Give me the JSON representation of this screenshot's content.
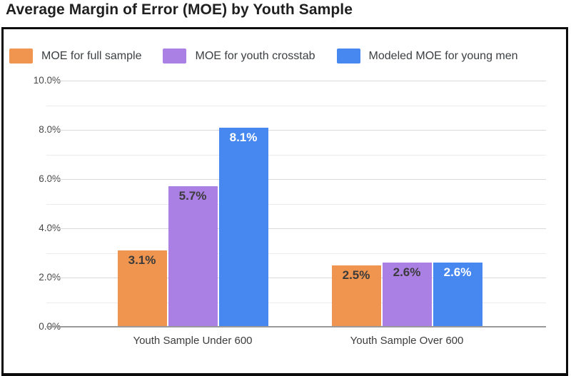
{
  "title": "Average Margin of Error (MOE) by Youth Sample",
  "colors": {
    "background": "#ffffff",
    "frame_border": "#0b0b0b",
    "title_text": "#1f1f1f",
    "legend_text": "#3c4043",
    "axis_text": "#464646",
    "gridline_major": "#d9d9d9",
    "gridline_minor": "#ebebeb",
    "baseline": "#9a9a9a"
  },
  "chart_data": {
    "type": "bar",
    "title": "Average Margin of Error (MOE) by Youth Sample",
    "categories": [
      "Youth Sample Under 600",
      "Youth Sample Over 600"
    ],
    "series": [
      {
        "name": "MOE for full sample",
        "color": "#F0954F",
        "values": [
          3.1,
          2.5
        ],
        "value_labels": [
          "3.1%",
          "2.5%"
        ],
        "value_label_color": "#3b3b3b"
      },
      {
        "name": "MOE for youth crosstab",
        "color": "#AB80E4",
        "values": [
          5.7,
          2.6
        ],
        "value_labels": [
          "5.7%",
          "2.6%"
        ],
        "value_label_color": "#3b3b3b"
      },
      {
        "name": "Modeled MOE for young men",
        "color": "#4787F0",
        "values": [
          8.1,
          2.6
        ],
        "value_labels": [
          "8.1%",
          "2.6%"
        ],
        "value_label_color": "#ffffff"
      }
    ],
    "xlabel": "",
    "ylabel": "",
    "ylim": [
      0,
      10
    ],
    "ytick_labels": [
      "0.0%",
      "2.0%",
      "4.0%",
      "6.0%",
      "8.0%",
      "10.0%"
    ],
    "ytick_values": [
      0,
      2,
      4,
      6,
      8,
      10
    ],
    "minor_gridline_values": [
      1,
      3,
      5,
      7,
      9
    ],
    "grid": "horizontal",
    "legend_position": "top-left"
  }
}
